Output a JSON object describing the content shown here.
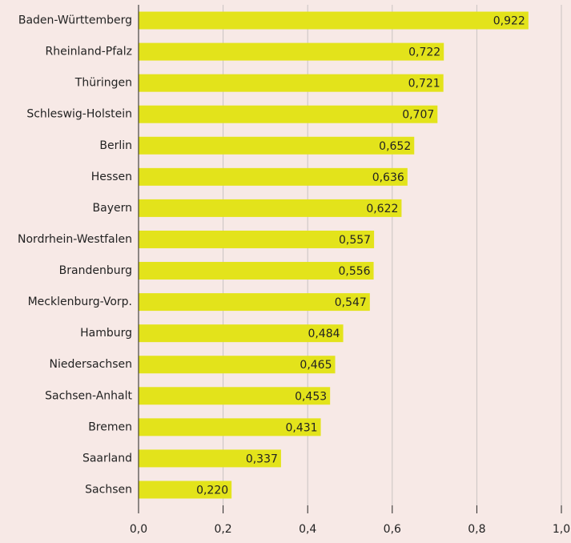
{
  "chart_data": {
    "type": "bar",
    "orientation": "horizontal",
    "categories": [
      "Baden-Württemberg",
      "Rheinland-Pfalz",
      "Thüringen",
      "Schleswig-Holstein",
      "Berlin",
      "Hessen",
      "Bayern",
      "Nordrhein-Westfalen",
      "Brandenburg",
      "Mecklenburg-Vorp.",
      "Hamburg",
      "Niedersachsen",
      "Sachsen-Anhalt",
      "Bremen",
      "Saarland",
      "Sachsen"
    ],
    "values": [
      0.922,
      0.722,
      0.721,
      0.707,
      0.652,
      0.636,
      0.622,
      0.557,
      0.556,
      0.547,
      0.484,
      0.465,
      0.453,
      0.431,
      0.337,
      0.22
    ],
    "value_labels": [
      "0,922",
      "0,722",
      "0,721",
      "0,707",
      "0,652",
      "0,636",
      "0,622",
      "0,557",
      "0,556",
      "0,547",
      "0,484",
      "0,465",
      "0,453",
      "0,431",
      "0,337",
      "0,220"
    ],
    "color": "#e3e31b",
    "xlim": [
      0,
      1
    ],
    "xticks": [
      {
        "value": 0,
        "label": "0,0"
      },
      {
        "value": 0.2,
        "label": "0,2"
      },
      {
        "value": 0.4,
        "label": "0,4"
      },
      {
        "value": 0.6,
        "label": "0,6"
      },
      {
        "value": 0.8,
        "label": "0,8"
      },
      {
        "value": 1,
        "label": "1,0"
      }
    ],
    "grid": true
  }
}
